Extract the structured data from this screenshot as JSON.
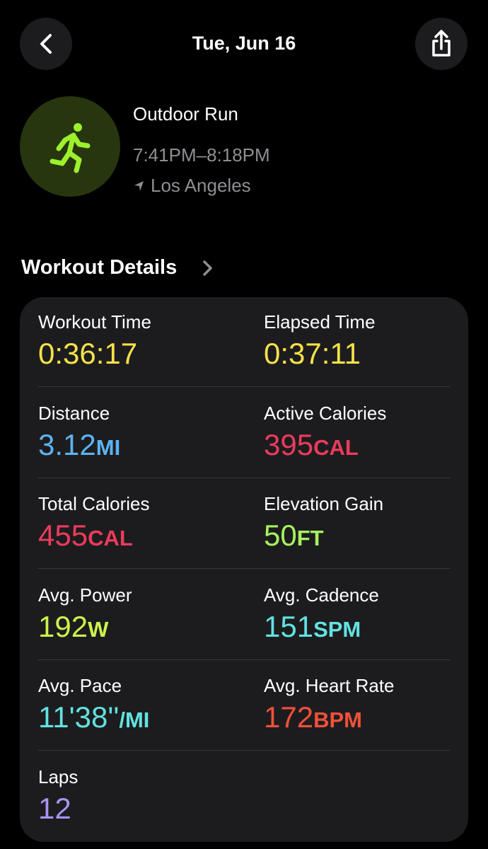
{
  "header": {
    "title": "Tue, Jun 16"
  },
  "workout": {
    "name": "Outdoor Run",
    "time": "7:41PM–8:18PM",
    "location": "Los Angeles"
  },
  "details": {
    "title": "Workout Details",
    "metrics": [
      {
        "label": "Workout Time",
        "value": "0:36:17",
        "unit": null,
        "color": "#f5e14a"
      },
      {
        "label": "Elapsed Time",
        "value": "0:37:11",
        "unit": null,
        "color": "#f5e14a"
      },
      {
        "label": "Distance",
        "value": "3.12",
        "unit": "MI",
        "color": "#5cb2f2"
      },
      {
        "label": "Active Calories",
        "value": "395",
        "unit": "CAL",
        "color": "#ec3b5c"
      },
      {
        "label": "Total Calories",
        "value": "455",
        "unit": "CAL",
        "color": "#ec3b5c"
      },
      {
        "label": "Elevation Gain",
        "value": "50",
        "unit": "FT",
        "color": "#a6f25e"
      },
      {
        "label": "Avg. Power",
        "value": "192",
        "unit": "W",
        "color": "#cdf24c"
      },
      {
        "label": "Avg. Cadence",
        "value": "151",
        "unit": "SPM",
        "color": "#63e1e1"
      },
      {
        "label": "Avg. Pace",
        "value": "11'38''",
        "unit": "/MI",
        "color": "#63e1e1"
      },
      {
        "label": "Avg. Heart Rate",
        "value": "172",
        "unit": "BPM",
        "color": "#f2503a"
      },
      {
        "label": "Laps",
        "value": "12",
        "unit": null,
        "color": "#a893f5"
      }
    ]
  }
}
